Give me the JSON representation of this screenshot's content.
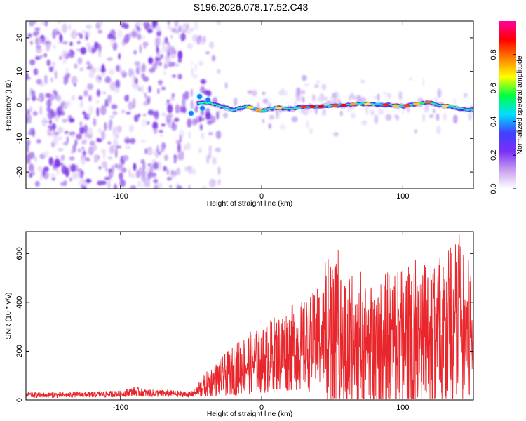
{
  "title": "S196.2026.078.17.52.C43",
  "chart_data": [
    {
      "type": "heatmap",
      "name": "spectrogram",
      "xlabel": "Height of straight line (km)",
      "ylabel": "Frequency (Hz)",
      "xlim": [
        -167,
        150
      ],
      "ylim": [
        -25,
        25
      ],
      "x_ticks": [
        -100,
        0,
        100
      ],
      "x_tick_labels": [
        "-100",
        "0",
        "100"
      ],
      "y_ticks": [
        -20,
        -10,
        0,
        10,
        20
      ],
      "y_tick_labels": [
        "-20",
        "-10",
        "0",
        "10",
        "20"
      ],
      "colorbar": {
        "label": "Normalized spectral amplitude",
        "range": [
          0,
          1
        ],
        "ticks": [
          0,
          0.2,
          0.4,
          0.6,
          0.8
        ],
        "tick_labels": [
          "0.0",
          "0.2",
          "0.4",
          "0.6",
          "0.8"
        ],
        "colormap": [
          "#ffffff",
          "#c8a0f0",
          "#7b2ff7",
          "#4040ff",
          "#00e0ff",
          "#00ff40",
          "#ffff00",
          "#ff8000",
          "#ff0000",
          "#ff00a0"
        ]
      },
      "signal_track": [
        {
          "x": -45,
          "y": 0.5
        },
        {
          "x": -40,
          "y": 0.8
        },
        {
          "x": -30,
          "y": -0.2
        },
        {
          "x": -20,
          "y": -1.5
        },
        {
          "x": -10,
          "y": -0.5
        },
        {
          "x": 0,
          "y": -1.8
        },
        {
          "x": 10,
          "y": -0.8
        },
        {
          "x": 20,
          "y": -1.2
        },
        {
          "x": 30,
          "y": -0.6
        },
        {
          "x": 40,
          "y": -0.5
        },
        {
          "x": 50,
          "y": -0.2
        },
        {
          "x": 60,
          "y": 0.0
        },
        {
          "x": 70,
          "y": 0.4
        },
        {
          "x": 80,
          "y": 0.1
        },
        {
          "x": 90,
          "y": 0.0
        },
        {
          "x": 100,
          "y": -0.4
        },
        {
          "x": 110,
          "y": 0.3
        },
        {
          "x": 118,
          "y": 0.8
        },
        {
          "x": 125,
          "y": 0.0
        },
        {
          "x": 135,
          "y": -0.6
        },
        {
          "x": 145,
          "y": -1.5
        }
      ]
    },
    {
      "type": "line",
      "name": "snr",
      "xlabel": "Height of straight line (km)",
      "ylabel": "SNR (10 * v/v)",
      "xlim": [
        -167,
        150
      ],
      "ylim": [
        0,
        690
      ],
      "x_ticks": [
        -100,
        0,
        100
      ],
      "x_tick_labels": [
        "-100",
        "0",
        "100"
      ],
      "y_ticks": [
        0,
        200,
        400,
        600
      ],
      "y_tick_labels": [
        "0",
        "200",
        "400",
        "600"
      ],
      "color": "#e8262b",
      "series": [
        {
          "name": "SNR envelope",
          "x": [
            -167,
            -150,
            -120,
            -100,
            -90,
            -80,
            -60,
            -50,
            -45,
            -40,
            -30,
            -20,
            -10,
            0,
            10,
            20,
            30,
            40,
            45,
            50,
            60,
            70,
            80,
            90,
            100,
            110,
            120,
            130,
            140,
            145,
            150
          ],
          "y": [
            20,
            20,
            22,
            25,
            35,
            28,
            25,
            22,
            40,
            60,
            90,
            120,
            150,
            160,
            190,
            210,
            220,
            250,
            270,
            260,
            230,
            220,
            210,
            240,
            260,
            230,
            260,
            270,
            300,
            250,
            280
          ]
        }
      ]
    }
  ]
}
